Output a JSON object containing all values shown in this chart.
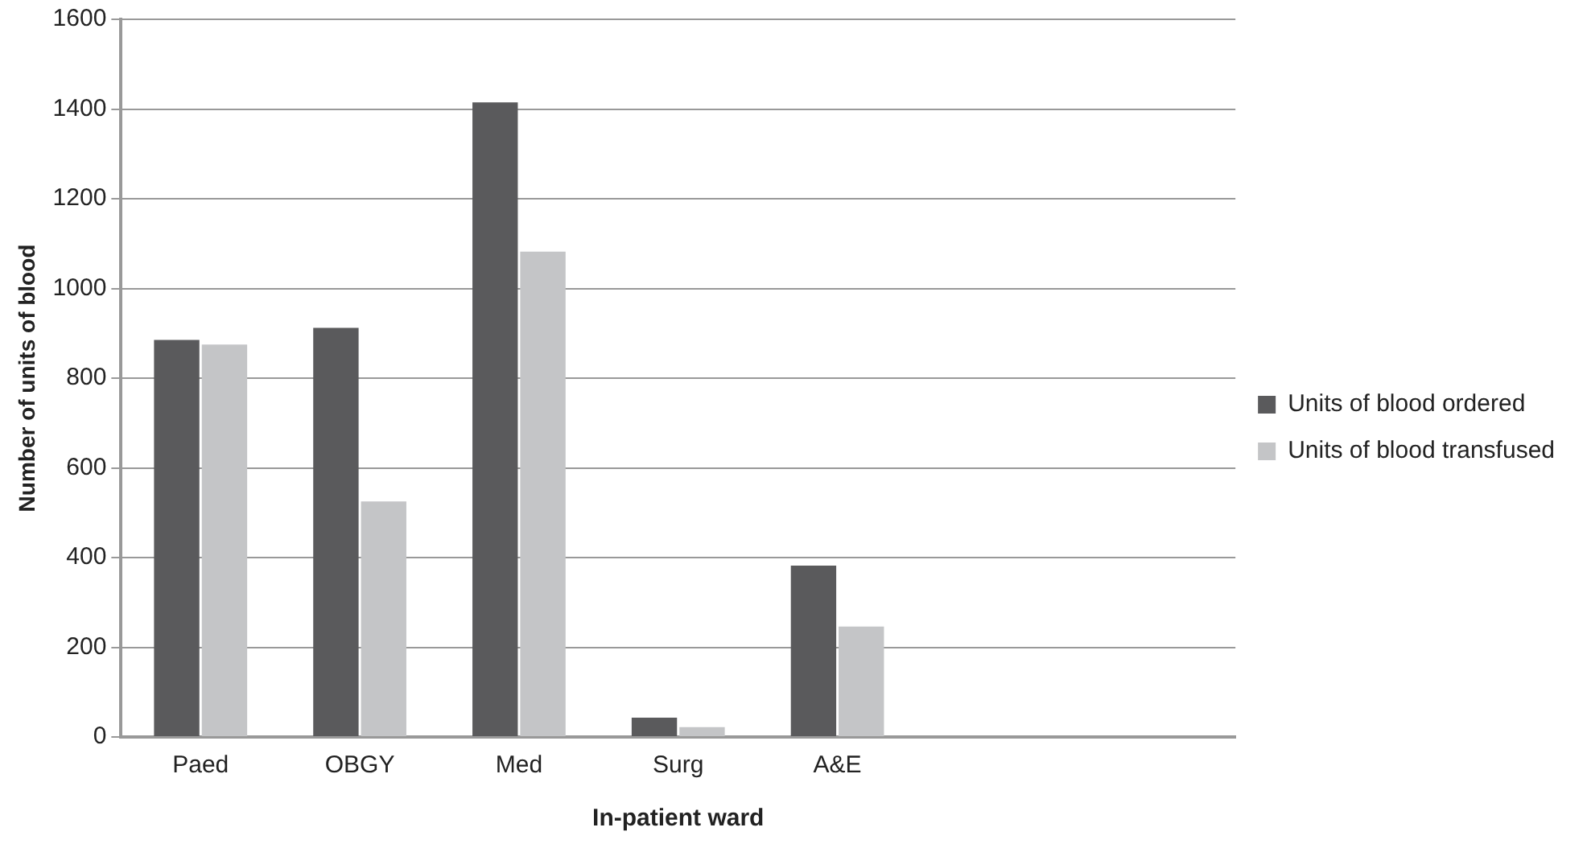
{
  "chart_data": {
    "type": "bar",
    "xlabel": "In-patient ward",
    "ylabel": "Number of units of blood",
    "categories": [
      "Paed",
      "OBGY",
      "Med",
      "Surg",
      "A&E",
      null,
      null
    ],
    "series": [
      {
        "name": "Units of blood ordered",
        "color": "#5a5a5c",
        "values": [
          885,
          912,
          1415,
          43,
          382,
          null,
          null
        ]
      },
      {
        "name": "Units of blood transfused",
        "color": "#c4c5c7",
        "values": [
          875,
          525,
          1082,
          22,
          246,
          null,
          null
        ]
      }
    ],
    "ylim": [
      0,
      1600
    ],
    "yticks": [
      0,
      200,
      400,
      600,
      800,
      1000,
      1200,
      1400,
      1600
    ],
    "grid": "y",
    "legend": "right"
  }
}
